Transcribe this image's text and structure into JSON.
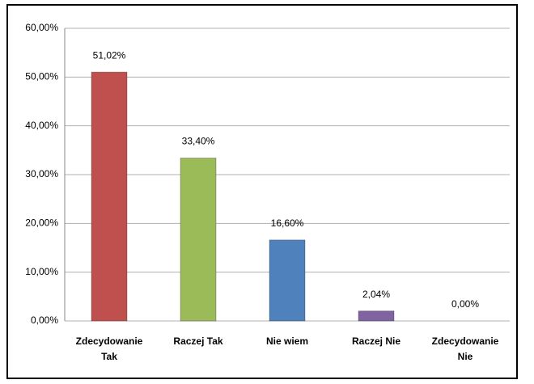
{
  "chart_data": {
    "type": "bar",
    "categories": [
      "Zdecydowanie Tak",
      "Raczej Tak",
      "Nie wiem",
      "Raczej Nie",
      "Zdecydowanie Nie"
    ],
    "values": [
      51.02,
      33.4,
      16.6,
      2.04,
      0
    ],
    "value_labels": [
      "51,02%",
      "33,40%",
      "16,60%",
      "2,04%",
      "0,00%"
    ],
    "colors": [
      "#c0504d",
      "#9bbb59",
      "#4f81bd",
      "#8064a2",
      "#8064a2"
    ],
    "ylim": [
      0,
      60
    ],
    "yticks": [
      {
        "value": 0,
        "label": "0,00%"
      },
      {
        "value": 10,
        "label": "10,00%"
      },
      {
        "value": 20,
        "label": "20,00%"
      },
      {
        "value": 30,
        "label": "30,00%"
      },
      {
        "value": 40,
        "label": "40,00%"
      },
      {
        "value": 50,
        "label": "50,00%"
      },
      {
        "value": 60,
        "label": "60,00%"
      }
    ],
    "grid": true
  }
}
